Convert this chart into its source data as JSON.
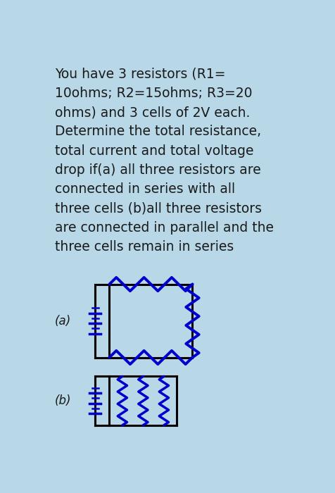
{
  "bg_color": "#b8d8e8",
  "panel_color": "#ffffff",
  "text_color": "#1a1a1a",
  "circuit_color": "#0000cc",
  "wire_color": "#000000",
  "main_text": "You have 3 resistors (R1=\n10ohms; R2=15ohms; R3=20\nohms) and 3 cells of 2V each.\nDetermine the total resistance,\ntotal current and total voltage\ndrop if(a) all three resistors are\nconnected in series with all\nthree cells (b)all three resistors\nare connected in parallel and the\nthree cells remain in series",
  "label_a": "(a)",
  "label_b": "(b)",
  "fontsize_main": 13.5,
  "fontsize_label": 12
}
